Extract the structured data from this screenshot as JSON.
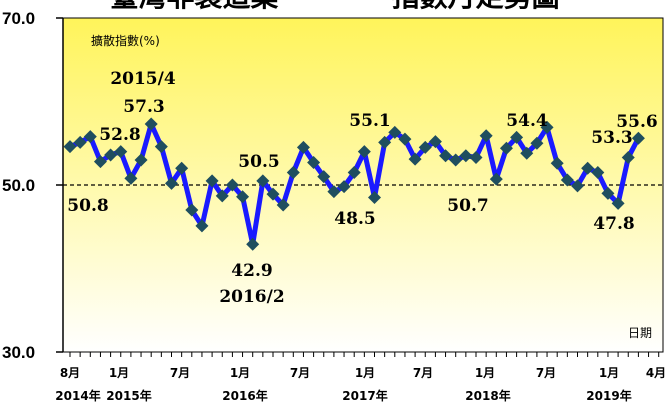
{
  "chart_data": {
    "type": "line",
    "title": "臺灣非製造業 　 　 　指數月走勢圖",
    "ylabel": "擴散指數(%)",
    "xunit": "日期",
    "ylim": [
      30,
      70
    ],
    "yticks": [
      "70.0",
      "50.0",
      "30.0"
    ],
    "reference_line": 50,
    "colors": {
      "line": "#1a1aff",
      "marker": "#1f4e5f",
      "background_top": "#fff45a",
      "background_bottom": "#ffffff",
      "reference": "#000000"
    },
    "x_month_labels": [
      "8月",
      "1月",
      "7月",
      "1月",
      "7月",
      "1月",
      "7月",
      "1月",
      "7月",
      "1月",
      "4月"
    ],
    "x_year_labels": [
      "2014年",
      "2015年",
      "2016年",
      "2017年",
      "2018年",
      "2019年"
    ],
    "series": [
      {
        "values": [
          54.6,
          55.1,
          55.8,
          52.8,
          53.6,
          54.0,
          50.8,
          53.0,
          57.3,
          54.6,
          50.2,
          52.0,
          47.0,
          45.1,
          50.5,
          48.7,
          50.0,
          48.6,
          42.9,
          50.5,
          48.9,
          47.6,
          51.5,
          54.5,
          52.7,
          51.0,
          49.2,
          49.8,
          51.5,
          54.0,
          48.5,
          55.1,
          56.3,
          55.5,
          53.1,
          54.5,
          55.2,
          53.5,
          53.0,
          53.5,
          53.3,
          55.9,
          50.7,
          54.4,
          55.7,
          53.8,
          55.0,
          56.9,
          52.6,
          50.6,
          49.9,
          52.0,
          51.5,
          49.0,
          47.8,
          53.3,
          55.6
        ]
      }
    ],
    "annotations": [
      {
        "label": "2015/4",
        "index": 8
      },
      {
        "label": "57.3",
        "index": 8
      },
      {
        "label": "52.8",
        "index": 3
      },
      {
        "label": "50.8",
        "index": 6
      },
      {
        "label": "50.5",
        "index": 19
      },
      {
        "label": "42.9",
        "index": 18
      },
      {
        "label": "2016/2",
        "index": 18
      },
      {
        "label": "55.1",
        "index": 31
      },
      {
        "label": "48.5",
        "index": 30
      },
      {
        "label": "54.4",
        "index": 43
      },
      {
        "label": "50.7",
        "index": 42
      },
      {
        "label": "53.3",
        "index": 55
      },
      {
        "label": "47.8",
        "index": 54
      },
      {
        "label": "55.6",
        "index": 56
      }
    ]
  }
}
